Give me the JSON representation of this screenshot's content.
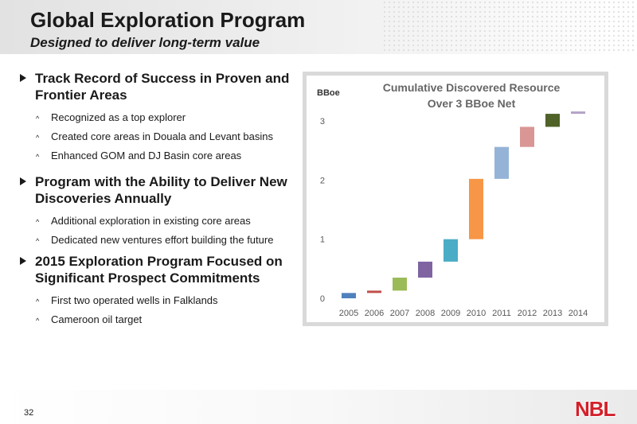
{
  "header": {
    "title": "Global Exploration Program",
    "subtitle": "Designed to deliver long-term value"
  },
  "bullets": [
    {
      "heading": "Track Record of Success in Proven and Frontier Areas",
      "items": [
        "Recognized as a top explorer",
        "Created core areas in Douala and Levant basins",
        "Enhanced GOM and DJ Basin core areas"
      ]
    },
    {
      "heading": "Program with the Ability to Deliver New Discoveries Annually",
      "items": [
        "Additional exploration in existing core areas",
        "Dedicated new ventures effort building the future"
      ]
    },
    {
      "heading": "2015 Exploration Program Focused on Significant Prospect Commitments",
      "items": [
        "First two operated wells in Falklands",
        "Cameroon oil target"
      ]
    }
  ],
  "chart_data": {
    "type": "bar",
    "subtype": "waterfall",
    "title": "Cumulative Discovered Resource Over 3 BBoe Net",
    "title_lines": [
      "Cumulative Discovered Resource",
      "Over 3 BBoe Net"
    ],
    "ylabel": "BBoe",
    "ylim": [
      0,
      3.3
    ],
    "yticks": [
      0,
      1,
      2,
      3
    ],
    "categories": [
      "2005",
      "2006",
      "2007",
      "2008",
      "2009",
      "2010",
      "2011",
      "2012",
      "2013",
      "2014"
    ],
    "bars": [
      {
        "start": 0.0,
        "end": 0.09,
        "color": "#4f81bd"
      },
      {
        "start": 0.09,
        "end": 0.13,
        "color": "#c0504d"
      },
      {
        "start": 0.13,
        "end": 0.35,
        "color": "#9bbb59"
      },
      {
        "start": 0.35,
        "end": 0.62,
        "color": "#8064a2"
      },
      {
        "start": 0.62,
        "end": 1.0,
        "color": "#4bacc6"
      },
      {
        "start": 1.0,
        "end": 2.02,
        "color": "#f79646"
      },
      {
        "start": 2.02,
        "end": 2.56,
        "color": "#95b3d7"
      },
      {
        "start": 2.56,
        "end": 2.9,
        "color": "#d99694"
      },
      {
        "start": 2.9,
        "end": 3.12,
        "color": "#4f6228"
      },
      {
        "start": 3.12,
        "end": 3.16,
        "color": "#b3a2c7"
      }
    ],
    "grid": false,
    "legend": "none"
  },
  "footer": {
    "page_number": "32",
    "logo": "NBL"
  }
}
